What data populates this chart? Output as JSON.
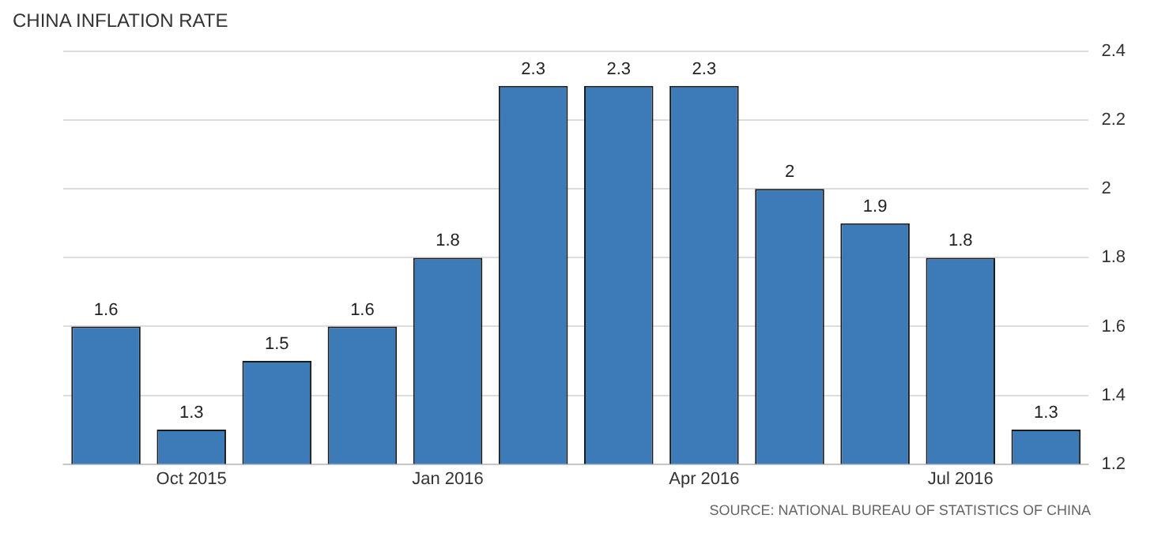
{
  "chart_data": {
    "type": "bar",
    "title": "CHINA INFLATION RATE",
    "categories": [
      null,
      "Oct 2015",
      null,
      null,
      "Jan 2016",
      null,
      null,
      "Apr 2016",
      null,
      null,
      "Jul 2016",
      null
    ],
    "values": [
      1.6,
      1.3,
      1.5,
      1.6,
      1.8,
      2.3,
      2.3,
      2.3,
      2,
      1.9,
      1.8,
      1.3
    ],
    "color": "#3d7ab8",
    "ylim": [
      1.2,
      2.4
    ],
    "yticks": [
      1.2,
      1.4,
      1.6,
      1.8,
      2,
      2.2,
      2.4
    ],
    "grid": "y",
    "data_labels": true,
    "annotations": [
      "SOURCE: NATIONAL BUREAU OF STATISTICS OF CHINA"
    ]
  }
}
